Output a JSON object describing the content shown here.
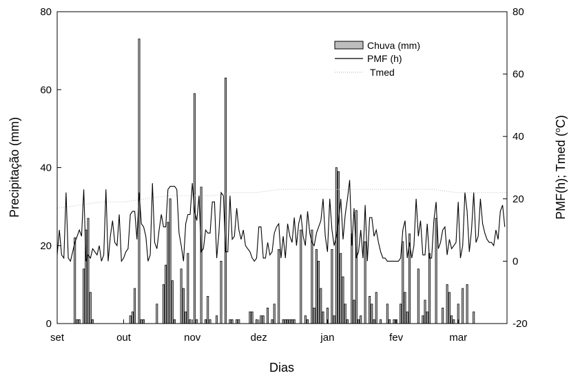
{
  "chart_data": {
    "type": "bar+line",
    "xlabel": "Dias",
    "ylabel": "Precipitação (mm)",
    "ylabel_right_main": "PMF(h); Tmed (",
    "ylabel_right_sup": "o",
    "ylabel_right_end": "C)",
    "ylim": [
      0,
      80
    ],
    "ylim_right": [
      -20,
      80
    ],
    "yticks": [
      "0",
      "20",
      "40",
      "60",
      "80"
    ],
    "yticks_right": [
      "-20",
      "0",
      "20",
      "40",
      "60",
      "80"
    ],
    "xticks": [
      "set",
      "out",
      "nov",
      "dez",
      "jan",
      "fev",
      "mar"
    ],
    "xlim_days": [
      0,
      203
    ],
    "month_start_days": [
      0,
      30,
      61,
      91,
      122,
      153,
      181
    ],
    "legend": {
      "placement": "top-right",
      "entries": [
        "Chuva (mm)",
        "PMF (h)",
        "Tmed"
      ]
    },
    "series": [
      {
        "name": "Chuva (mm)",
        "type": "bar",
        "axis": "left",
        "days": [
          8,
          9,
          10,
          12,
          13,
          14,
          15,
          16,
          33,
          34,
          35,
          37,
          38,
          39,
          45,
          48,
          49,
          50,
          51,
          52,
          53,
          56,
          57,
          58,
          59,
          60,
          62,
          63,
          65,
          67,
          68,
          69,
          72,
          74,
          76,
          78,
          79,
          81,
          82,
          87,
          88,
          90,
          92,
          93,
          95,
          97,
          98,
          100,
          102,
          103,
          104,
          105,
          106,
          107,
          110,
          112,
          113,
          115,
          116,
          117,
          118,
          119,
          120,
          122,
          124,
          125,
          126,
          127,
          128,
          129,
          130,
          131,
          133,
          134,
          135,
          136,
          137,
          139,
          141,
          142,
          143,
          144,
          146,
          149,
          150,
          152,
          153,
          155,
          156,
          157,
          158,
          159,
          163,
          165,
          166,
          167,
          168,
          171,
          174,
          176,
          177,
          178,
          179,
          181,
          183,
          185,
          188
        ],
        "values": [
          22,
          1,
          1,
          14,
          24,
          27,
          8,
          1,
          2,
          3,
          9,
          73,
          1,
          1,
          5,
          10,
          15,
          26,
          32,
          11,
          1,
          14,
          9,
          3,
          18,
          1,
          59,
          1,
          35,
          1,
          7,
          1,
          2,
          16,
          63,
          1,
          1,
          1,
          1,
          3,
          3,
          1,
          2,
          2,
          4,
          1,
          5,
          19,
          1,
          1,
          1,
          1,
          1,
          1,
          24,
          2,
          1,
          24,
          4,
          19,
          16,
          9,
          3,
          4,
          19,
          2,
          40,
          39,
          18,
          12,
          5,
          1,
          23,
          6,
          29,
          1,
          2,
          21,
          7,
          5,
          1,
          8,
          1,
          5,
          1,
          1,
          1,
          5,
          21,
          8,
          3,
          23,
          14,
          2,
          6,
          3,
          18,
          27,
          4,
          10,
          8,
          2,
          1,
          5,
          9,
          10,
          3
        ]
      },
      {
        "name": "PMF (h)",
        "type": "line",
        "axis": "right",
        "days": [
          0,
          1,
          2,
          3,
          4,
          5,
          6,
          7,
          8,
          9,
          10,
          11,
          12,
          13,
          14,
          15,
          16,
          17,
          18,
          19,
          20,
          21,
          22,
          23,
          24,
          25,
          26,
          27,
          28,
          29,
          30,
          31,
          32,
          33,
          34,
          35,
          36,
          37,
          38,
          39,
          40,
          41,
          42,
          43,
          44,
          45,
          46,
          47,
          48,
          49,
          50,
          51,
          52,
          53,
          54,
          55,
          56,
          57,
          58,
          59,
          60,
          61,
          62,
          63,
          64,
          65,
          66,
          67,
          68,
          69,
          70,
          71,
          72,
          73,
          74,
          75,
          76,
          77,
          78,
          79,
          80,
          81,
          82,
          83,
          84,
          85,
          86,
          87,
          88,
          89,
          90,
          91,
          92,
          93,
          94,
          95,
          96,
          97,
          98,
          99,
          100,
          101,
          102,
          103,
          104,
          105,
          106,
          107,
          108,
          109,
          110,
          111,
          112,
          113,
          114,
          115,
          116,
          117,
          118,
          119,
          120,
          121,
          122,
          123,
          124,
          125,
          126,
          127,
          128,
          129,
          130,
          131,
          132,
          133,
          134,
          135,
          136,
          137,
          138,
          139,
          140,
          141,
          142,
          143,
          144,
          145,
          146,
          147,
          148,
          149,
          150,
          151,
          152,
          153,
          154,
          155,
          156,
          157,
          158,
          159,
          160,
          161,
          162,
          163,
          164,
          165,
          166,
          167,
          168,
          169,
          170,
          171,
          172,
          173,
          174,
          175,
          176,
          177,
          178,
          179,
          180,
          181,
          182,
          183,
          184,
          185,
          186,
          187,
          188,
          189,
          190,
          191,
          192,
          193,
          194,
          195,
          196,
          197,
          198,
          199,
          200,
          201,
          202
        ],
        "values": [
          2,
          10,
          2,
          1,
          22,
          1,
          0,
          3,
          6,
          8,
          10,
          8,
          23,
          0,
          2,
          1,
          4,
          3,
          2,
          5,
          0,
          2,
          23,
          0,
          8,
          13,
          6,
          5,
          15,
          0,
          1,
          3,
          4,
          15,
          16,
          16,
          7,
          22,
          12,
          11,
          8,
          0,
          2,
          25,
          6,
          4,
          10,
          15,
          11,
          11,
          23,
          24,
          24,
          24,
          23,
          9,
          5,
          0,
          12,
          15,
          15,
          25,
          16,
          13,
          21,
          3,
          4,
          10,
          9,
          9,
          19,
          19,
          1,
          9,
          22,
          21,
          3,
          3,
          21,
          7,
          8,
          17,
          10,
          7,
          10,
          5,
          4,
          3,
          1,
          0,
          1,
          11,
          11,
          1,
          1,
          6,
          2,
          3,
          9,
          11,
          12,
          1,
          8,
          1,
          12,
          8,
          6,
          14,
          5,
          12,
          15,
          8,
          5,
          16,
          9,
          6,
          5,
          9,
          11,
          13,
          20,
          8,
          3,
          20,
          10,
          5,
          8,
          13,
          20,
          7,
          15,
          20,
          26,
          5,
          17,
          1,
          3,
          10,
          1,
          18,
          0,
          14,
          14,
          8,
          10,
          6,
          3,
          1,
          1,
          0,
          0,
          0,
          0,
          0,
          0,
          1,
          10,
          13,
          1,
          6,
          1,
          5,
          20,
          8,
          13,
          2,
          2,
          12,
          1,
          1,
          13,
          19,
          4,
          6,
          10,
          11,
          2,
          7,
          4,
          5,
          6,
          19,
          1,
          5,
          22,
          16,
          3,
          10,
          22,
          6,
          8,
          20,
          12,
          9,
          7,
          6,
          6,
          5,
          10,
          7,
          16,
          18,
          11
        ]
      },
      {
        "name": "Tmed",
        "type": "line",
        "style": "dotted",
        "axis": "right",
        "days": [
          0,
          10,
          20,
          30,
          40,
          50,
          60,
          70,
          80,
          90,
          100,
          110,
          120,
          130,
          140,
          150,
          160,
          170,
          180,
          190,
          200,
          203
        ],
        "values": [
          17,
          18,
          19,
          19,
          20,
          21,
          21,
          21,
          22,
          22,
          23,
          23,
          23,
          23,
          23,
          23,
          23,
          23,
          22,
          22,
          22,
          22
        ]
      }
    ]
  }
}
